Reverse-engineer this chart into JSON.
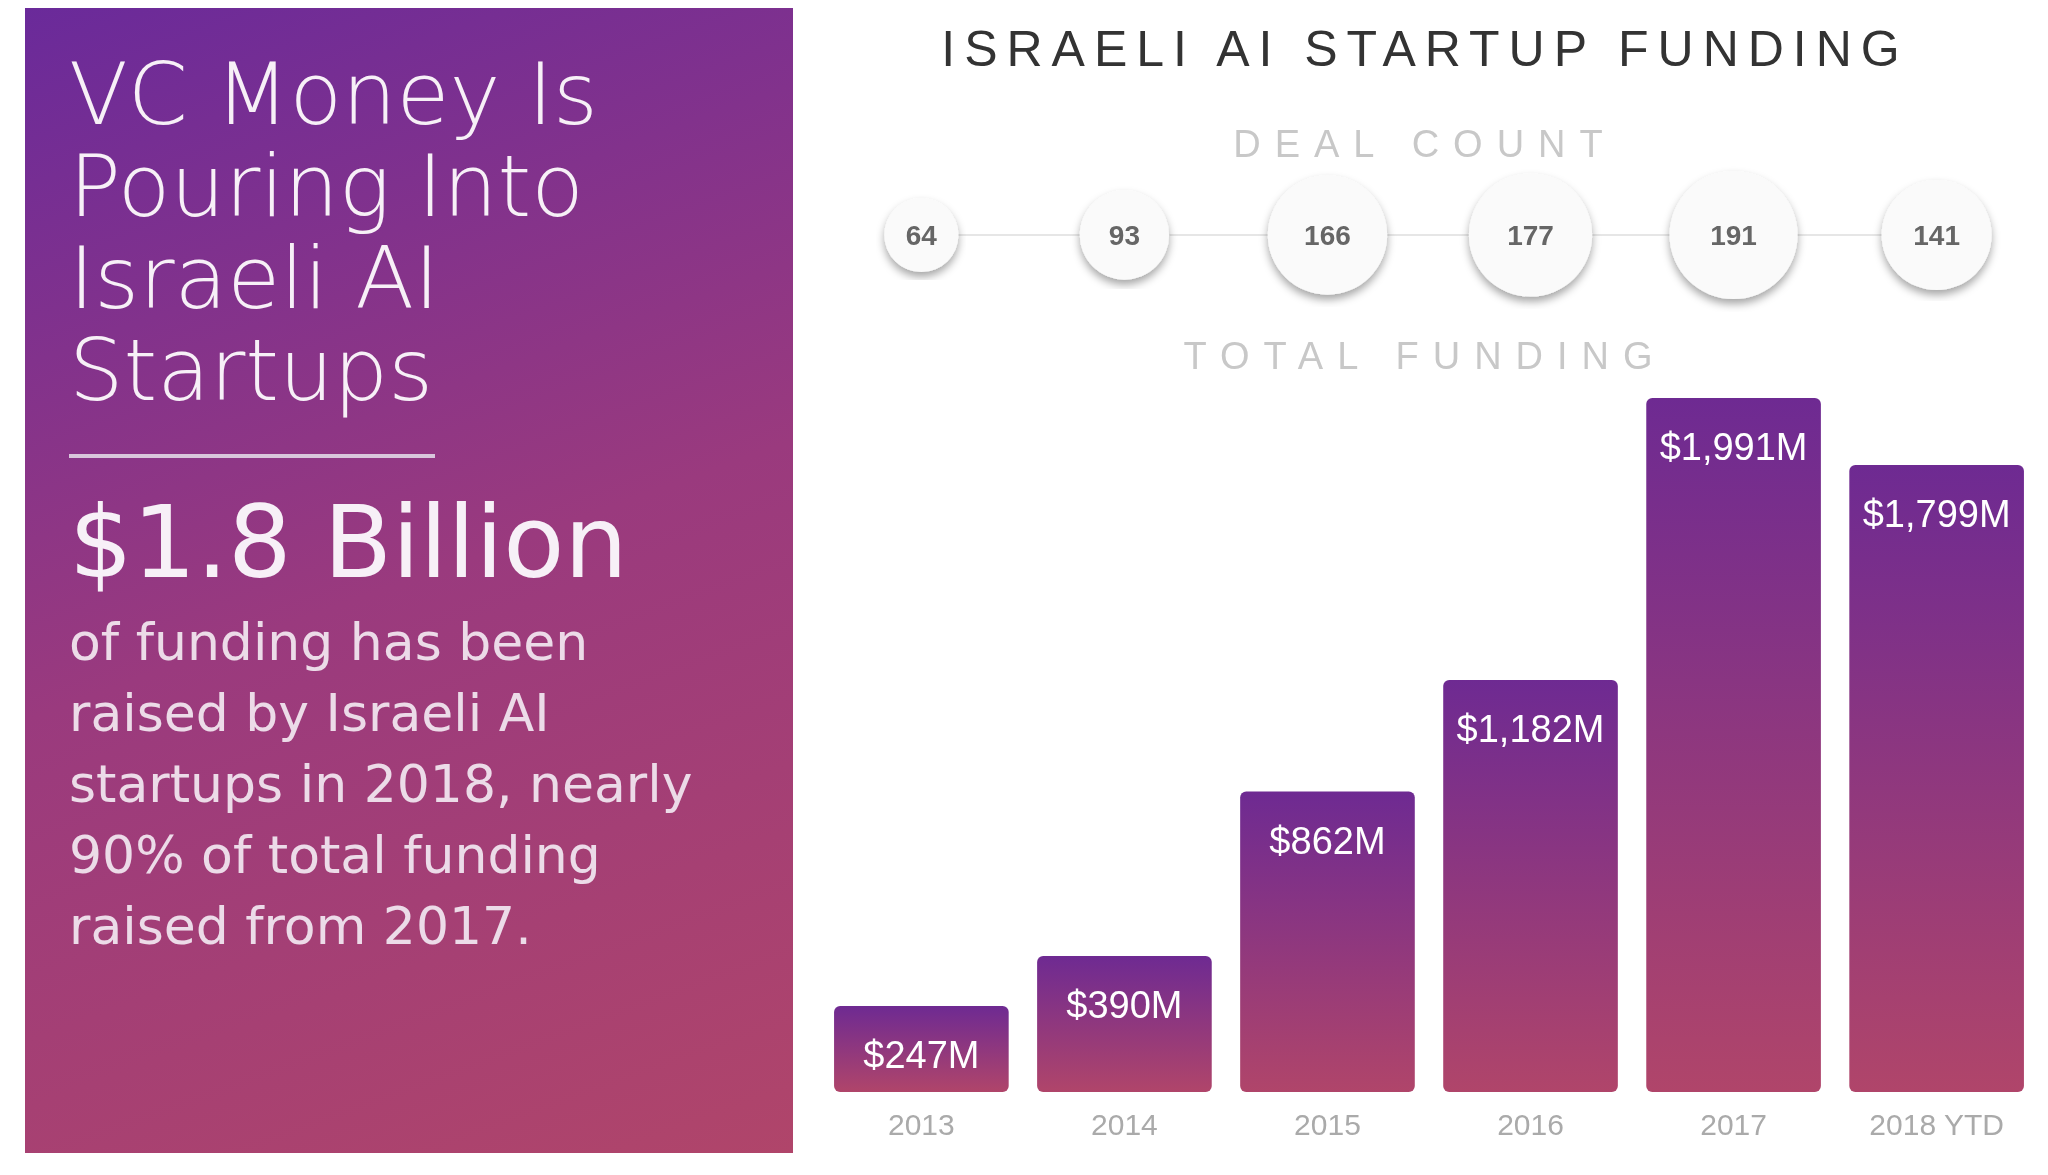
{
  "chart_data": [
    {
      "type": "other",
      "title": "VC Money Is Pouring Into Israeli AI Startups",
      "subtitle": "$1.8 Billion",
      "annotations": [
        "of funding has been raised by Israeli AI startups in 2018, nearly 90% of total funding raised from 2017."
      ]
    },
    {
      "type": "other",
      "title": "ISRAELI AI STARTUP FUNDING",
      "subtitle": "DEAL COUNT",
      "values": [
        64,
        93,
        166,
        177,
        191,
        141
      ],
      "data_labels": true
    },
    {
      "type": "bar",
      "title": "TOTAL FUNDING",
      "categories": [
        "2013",
        "2014",
        "2015",
        "2016",
        "2017",
        "2018 YTD"
      ],
      "series": [
        {
          "color": "#6e2a92",
          "values": [
            247,
            390,
            862,
            1182,
            1991,
            1799
          ],
          "value_labels": [
            "$247M",
            "$390M",
            "$862M",
            "$1,182M",
            "$1,991M",
            "$1,799M"
          ]
        }
      ]
    }
  ]
}
